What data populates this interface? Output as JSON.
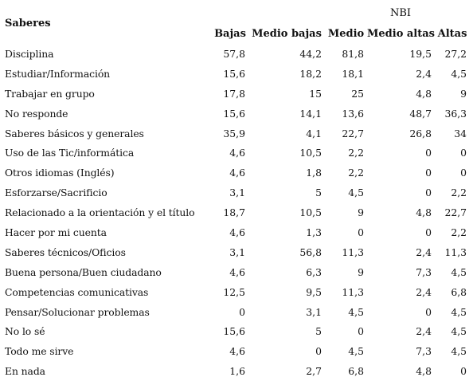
{
  "table": {
    "row_header": "Saberes",
    "group_header": "NBI",
    "columns": [
      "Bajas",
      "Medio bajas",
      "Medio",
      "Medio altas",
      "Altas"
    ],
    "rows": [
      {
        "label": "Disciplina",
        "values": [
          "57,8",
          "44,2",
          "81,8",
          "19,5",
          "27,2"
        ]
      },
      {
        "label": "Estudiar/Información",
        "values": [
          "15,6",
          "18,2",
          "18,1",
          "2,4",
          "4,5"
        ]
      },
      {
        "label": "Trabajar en grupo",
        "values": [
          "17,8",
          "15",
          "25",
          "4,8",
          "9"
        ]
      },
      {
        "label": "No responde",
        "values": [
          "15,6",
          "14,1",
          "13,6",
          "48,7",
          "36,3"
        ]
      },
      {
        "label": "Saberes básicos y generales",
        "values": [
          "35,9",
          "4,1",
          "22,7",
          "26,8",
          "34"
        ]
      },
      {
        "label": "Uso de las Tic/informática",
        "values": [
          "4,6",
          "10,5",
          "2,2",
          "0",
          "0"
        ]
      },
      {
        "label": "Otros idiomas (Inglés)",
        "values": [
          "4,6",
          "1,8",
          "2,2",
          "0",
          "0"
        ]
      },
      {
        "label": "Esforzarse/Sacrificio",
        "values": [
          "3,1",
          "5",
          "4,5",
          "0",
          "2,2"
        ]
      },
      {
        "label": "Relacionado a la orientación y el título",
        "values": [
          "18,7",
          "10,5",
          "9",
          "4,8",
          "22,7"
        ]
      },
      {
        "label": "Hacer por mi cuenta",
        "values": [
          "4,6",
          "1,3",
          "0",
          "0",
          "2,2"
        ]
      },
      {
        "label": "Saberes técnicos/Oficios",
        "values": [
          "3,1",
          "56,8",
          "11,3",
          "2,4",
          "11,3"
        ]
      },
      {
        "label": "Buena persona/Buen ciudadano",
        "values": [
          "4,6",
          "6,3",
          "9",
          "7,3",
          "4,5"
        ]
      },
      {
        "label": "Competencias comunicativas",
        "values": [
          "12,5",
          "9,5",
          "11,3",
          "2,4",
          "6,8"
        ]
      },
      {
        "label": "Pensar/Solucionar problemas",
        "values": [
          "0",
          "3,1",
          "4,5",
          "0",
          "4,5"
        ]
      },
      {
        "label": "No lo sé",
        "values": [
          "15,6",
          "5",
          "0",
          "2,4",
          "4,5"
        ]
      },
      {
        "label": "Todo me sirve",
        "values": [
          "4,6",
          "0",
          "4,5",
          "7,3",
          "4,5"
        ]
      },
      {
        "label": "En nada",
        "values": [
          "1,6",
          "2,7",
          "6,8",
          "4,8",
          "0"
        ]
      }
    ]
  }
}
